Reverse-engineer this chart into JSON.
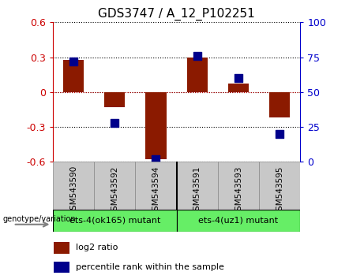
{
  "title": "GDS3747 / A_12_P102251",
  "samples": [
    "GSM543590",
    "GSM543592",
    "GSM543594",
    "GSM543591",
    "GSM543593",
    "GSM543595"
  ],
  "log2_ratio": [
    0.28,
    -0.13,
    -0.58,
    0.3,
    0.07,
    -0.22
  ],
  "percentile_rank": [
    72,
    28,
    2,
    76,
    60,
    20
  ],
  "groups": [
    {
      "label": "ets-4(ok165) mutant",
      "count": 3,
      "color": "#90EE90"
    },
    {
      "label": "ets-4(uz1) mutant",
      "count": 3,
      "color": "#90EE90"
    }
  ],
  "group_boundary": 2.5,
  "ylim_left": [
    -0.6,
    0.6
  ],
  "ylim_right": [
    0,
    100
  ],
  "yticks_left": [
    -0.6,
    -0.3,
    0.0,
    0.3,
    0.6
  ],
  "yticks_right": [
    0,
    25,
    50,
    75,
    100
  ],
  "bar_color": "#8B1A00",
  "dot_color": "#00008B",
  "tick_label_area_color": "#C8C8C8",
  "group_label_color": "#66EE66",
  "left_axis_color": "#CC0000",
  "right_axis_color": "#0000CC",
  "zero_line_color": "#CC0000",
  "genotype_label": "genotype/variation",
  "legend_bar_label": "log2 ratio",
  "legend_dot_label": "percentile rank within the sample",
  "bar_width": 0.5,
  "dot_size": 55
}
